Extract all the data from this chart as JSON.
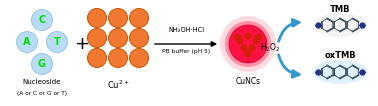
{
  "bg_color": "#ffffff",
  "letters": [
    "C",
    "A",
    "T",
    "G"
  ],
  "letter_color": "#00dd00",
  "circle_bg": "#b8dcf5",
  "cu_circle_color": "#f07830",
  "cu_circle_edge": "#cc6010",
  "reaction_line1": "NH₂OH·HCl",
  "reaction_line2": "PB buffer (pH 5)",
  "cunc_glow1": "#ffaacc",
  "cunc_glow2": "#ff6699",
  "cunc_main": "#ff2255",
  "cunc_dot": "#cc0033",
  "arrow_color": "#3399cc",
  "h2o2": "H₂O₂",
  "tmb_label": "TMB",
  "oxtmb_label": "oxTMB",
  "cu_label": "Cu",
  "figsize": [
    3.78,
    1.06
  ],
  "dpi": 100
}
